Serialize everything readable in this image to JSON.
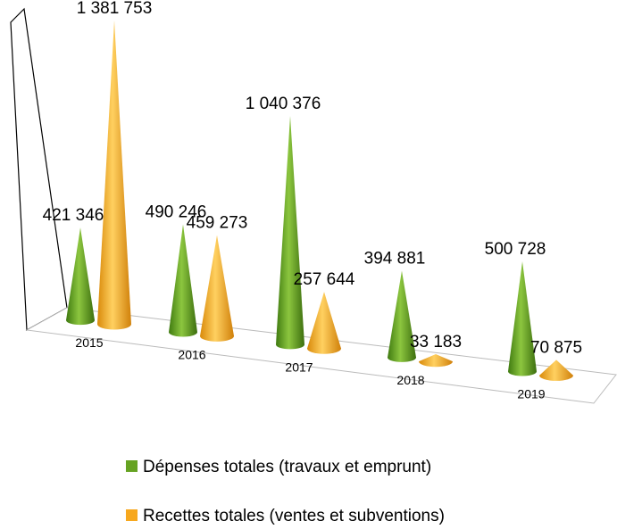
{
  "chart_data": {
    "type": "cone3d",
    "categories": [
      "2015",
      "2016",
      "2017",
      "2018",
      "2019"
    ],
    "series": [
      {
        "name": "Dépenses totales (travaux et emprunt)",
        "color": "#66a322",
        "values": [
          421346,
          490246,
          1040376,
          394881,
          500728
        ],
        "value_labels": [
          "421 346",
          "490 246",
          "1 040 376",
          "394 881",
          "500 728"
        ]
      },
      {
        "name": "Recettes totales (ventes et subventions)",
        "color": "#f7a81e",
        "values": [
          1381753,
          459273,
          257644,
          33183,
          70875
        ],
        "value_labels": [
          "1 381 753",
          "459 273",
          "257 644",
          "33 183",
          "70 875"
        ]
      }
    ],
    "ylim": [
      0,
      1400000
    ],
    "legend": "bottom"
  }
}
